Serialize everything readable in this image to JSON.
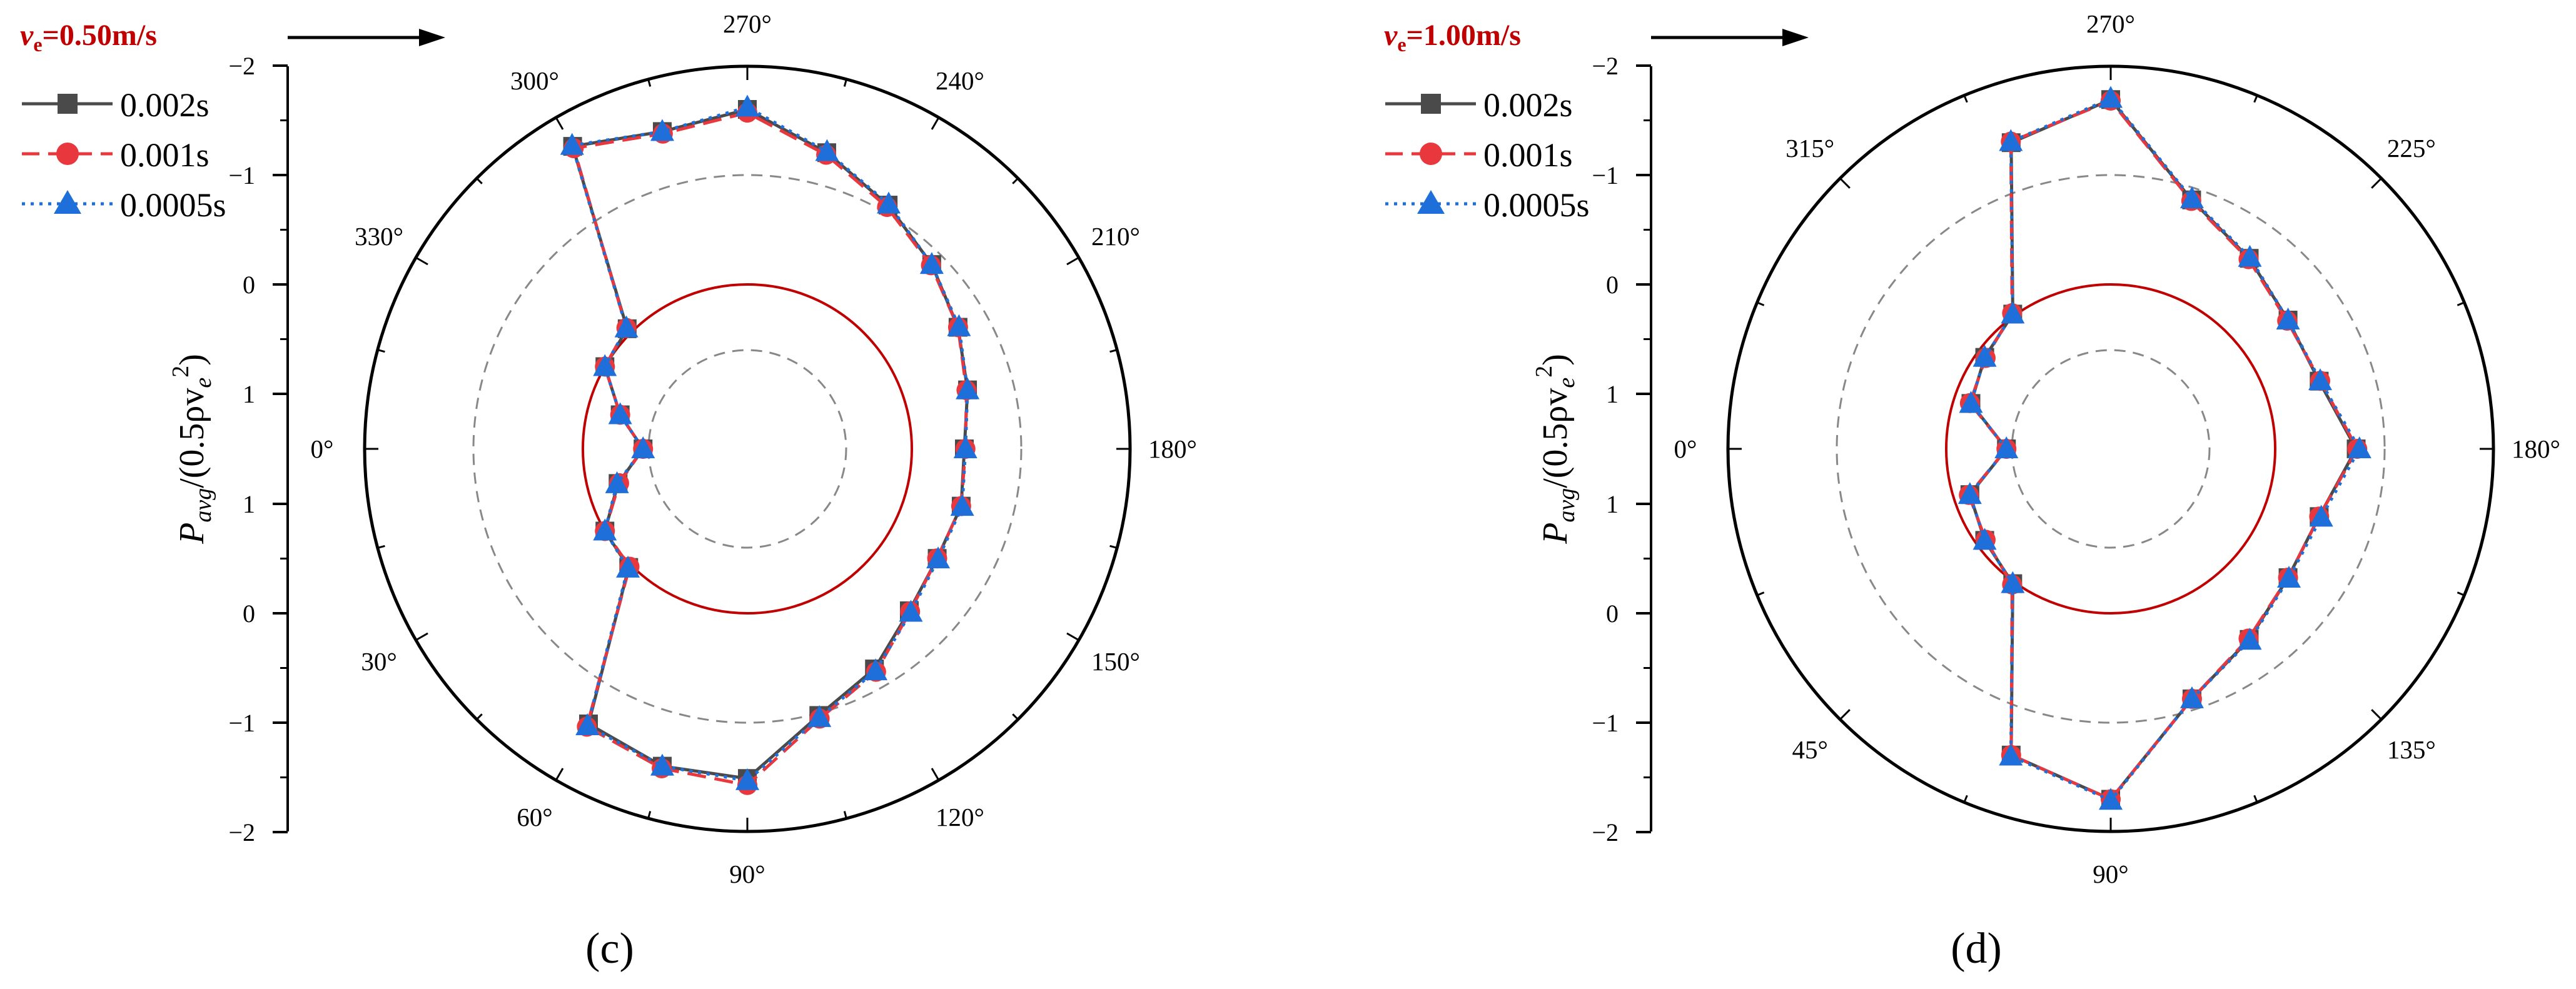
{
  "colors": {
    "series_0": "#4a4a4a",
    "series_1": "#e8383d",
    "series_2": "#1e6fd9",
    "velocity_text": "#c00000",
    "zero_circle": "#c00000",
    "dashed_circle": "#888888"
  },
  "chart_data": [
    {
      "type": "line",
      "coordinate_system": "polar",
      "caption": "(c)",
      "velocity_var": "v",
      "velocity_sub": "e",
      "velocity_value": "=0.50m/s",
      "ylabel_base": "P",
      "ylabel_sub": "avg",
      "ylabel_rest_a": "/(0.5ρv",
      "ylabel_sub2": "e",
      "ylabel_sup": "2",
      "ylabel_close": ")",
      "radial_axis": {
        "range": [
          -2,
          1
        ],
        "ticks_upper": [
          "−2",
          "−1",
          "0",
          "1"
        ],
        "ticks_lower": [
          "1",
          "0",
          "−1",
          "−2"
        ]
      },
      "angle_labels": [
        "0°",
        "30°",
        "60°",
        "90°",
        "120°",
        "150°",
        "180°",
        "210°",
        "240°",
        "270°",
        "300°",
        "330°"
      ],
      "angles_deg": [
        0,
        15,
        30,
        45,
        60,
        75,
        90,
        105,
        120,
        135,
        150,
        165,
        180,
        195,
        210,
        225,
        240,
        255,
        270,
        285,
        300,
        315,
        330,
        345
      ],
      "reference_circles": [
        {
          "value": 0,
          "style": "solid"
        },
        {
          "value": -1,
          "style": "dashed"
        },
        {
          "value": 0.6,
          "style": "dashed"
        }
      ],
      "series": [
        {
          "name": "0.002s",
          "marker": "square",
          "dash": "solid",
          "values": [
            0.55,
            0.28,
            0.0,
            -0.03,
            -1.4,
            -1.5,
            -1.51,
            -1.02,
            -0.82,
            -0.59,
            -0.5,
            -0.52,
            -0.48,
            -0.58,
            -0.72,
            -0.88,
            -1.07,
            -1.3,
            -1.6,
            -1.5,
            -1.69,
            -0.05,
            0.0,
            0.3
          ]
        },
        {
          "name": "0.001s",
          "marker": "circle",
          "dash": "dashed",
          "values": [
            0.55,
            0.29,
            0.0,
            -0.02,
            -1.43,
            -1.52,
            -1.57,
            -1.05,
            -0.85,
            -0.6,
            -0.5,
            -0.52,
            -0.49,
            -0.57,
            -0.72,
            -0.87,
            -1.05,
            -1.28,
            -1.57,
            -1.48,
            -1.67,
            -0.06,
            0.0,
            0.3
          ]
        },
        {
          "name": "0.0005s",
          "marker": "triangle",
          "dash": "dotted",
          "values": [
            0.55,
            0.27,
            0.0,
            -0.04,
            -1.42,
            -1.5,
            -1.53,
            -1.04,
            -0.84,
            -0.61,
            -0.51,
            -0.53,
            -0.49,
            -0.58,
            -0.73,
            -0.88,
            -1.08,
            -1.31,
            -1.62,
            -1.5,
            -1.7,
            -0.06,
            0.0,
            0.3
          ]
        }
      ]
    },
    {
      "type": "line",
      "coordinate_system": "polar",
      "caption": "(d)",
      "velocity_var": "v",
      "velocity_sub": "e",
      "velocity_value": "=1.00m/s",
      "ylabel_base": "P",
      "ylabel_sub": "avg",
      "ylabel_rest_a": "/(0.5ρv",
      "ylabel_sub2": "e",
      "ylabel_sup": "2",
      "ylabel_close": ")",
      "radial_axis": {
        "range": [
          -2,
          1
        ],
        "ticks_upper": [
          "−2",
          "−1",
          "0",
          "1"
        ],
        "ticks_lower": [
          "1",
          "0",
          "−1",
          "−2"
        ]
      },
      "angle_labels": [
        "0°",
        "45°",
        "90°",
        "135°",
        "180°",
        "225°",
        "270°",
        "315°"
      ],
      "angles_deg": [
        0,
        18,
        36,
        54,
        72,
        90,
        108,
        126,
        144,
        162,
        180,
        198,
        216,
        234,
        252,
        270,
        288,
        306,
        324,
        342
      ],
      "reference_circles": [
        {
          "value": 0,
          "style": "solid"
        },
        {
          "value": -1,
          "style": "dashed"
        },
        {
          "value": 0.6,
          "style": "dashed"
        }
      ],
      "series": [
        {
          "name": "0.002s",
          "marker": "square",
          "dash": "solid",
          "values": [
            0.55,
            0.15,
            0.08,
            -0.02,
            -1.44,
            -1.7,
            -0.9,
            -0.65,
            -0.5,
            -0.5,
            -0.74,
            -0.5,
            -0.5,
            -0.65,
            -0.89,
            -1.69,
            -1.44,
            -0.02,
            0.08,
            0.16
          ]
        },
        {
          "name": "0.001s",
          "marker": "circle",
          "dash": "dashed",
          "values": [
            0.55,
            0.14,
            0.09,
            -0.03,
            -1.44,
            -1.7,
            -0.9,
            -0.64,
            -0.5,
            -0.5,
            -0.75,
            -0.51,
            -0.49,
            -0.64,
            -0.88,
            -1.68,
            -1.45,
            -0.03,
            0.09,
            0.15
          ]
        },
        {
          "name": "0.0005s",
          "marker": "triangle",
          "dash": "dotted",
          "values": [
            0.55,
            0.15,
            0.08,
            -0.02,
            -1.45,
            -1.71,
            -0.9,
            -0.66,
            -0.51,
            -0.52,
            -0.77,
            -0.51,
            -0.5,
            -0.66,
            -0.9,
            -1.7,
            -1.45,
            -0.02,
            0.08,
            0.16
          ]
        }
      ]
    }
  ]
}
